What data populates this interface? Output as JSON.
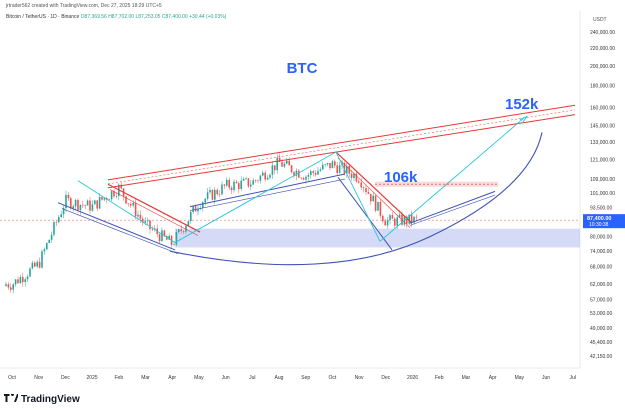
{
  "header": {
    "created_by": "jrtrader562 created with TradingView.com, Dec 27, 2025 18:29 UTC+5"
  },
  "symbol": {
    "name": "Bitcoin / TetherUS · 1D · Binance",
    "ohlc": "O87,369.56 H87,702.00 L87,253.05 C87,400.00 +30.44 (+0.03%)"
  },
  "footer": {
    "brand": "TradingView"
  },
  "colors": {
    "up": "#26a69a",
    "down": "#ef5350",
    "trend_red": "#e53935",
    "trend_blue": "#3f51b5",
    "cyan": "#26c6da",
    "zone": "#b3bdf0",
    "label_blue": "#2962ff",
    "price_tag": "#2962ff"
  },
  "chart_data": {
    "type": "candlestick",
    "title": "BTC",
    "currency": "USDT",
    "x_ticks": [
      "Oct",
      "Nov",
      "Dec",
      "2025",
      "Feb",
      "Mar",
      "Apr",
      "May",
      "Jun",
      "Jul",
      "Aug",
      "Sep",
      "Oct",
      "Nov",
      "Dec",
      "2026",
      "Feb",
      "Mar",
      "Apr",
      "May",
      "Jun",
      "Jul"
    ],
    "y_ticks": [
      "240,000.00",
      "220,000.00",
      "200,000.00",
      "180,000.00",
      "160,000.00",
      "145,000.00",
      "133,000.00",
      "121,000.00",
      "109,000.00",
      "101,000.00",
      "93,500.00",
      "86,000.00",
      "80,000.00",
      "74,000.00",
      "68,000.00",
      "62,000.00",
      "57,000.00",
      "53,000.00",
      "49,000.00",
      "45,400.00",
      "42,150.00"
    ],
    "y_scale": "log",
    "current_price": {
      "price": "87,400.00",
      "countdown": "10:30:38"
    },
    "annotations": [
      {
        "text": "106k",
        "price": 106000
      },
      {
        "text": "152k",
        "price": 152000
      }
    ],
    "support_zone": {
      "low": 75500,
      "high": 83500
    },
    "price_path": [
      [
        "Oct",
        62000
      ],
      [
        "Nov",
        69000
      ],
      [
        "Dec",
        97000
      ],
      [
        "2025",
        94000
      ],
      [
        "Feb",
        104000
      ],
      [
        "Mar",
        85000
      ],
      [
        "Apr",
        77000
      ],
      [
        "May",
        96000
      ],
      [
        "Jun",
        105000
      ],
      [
        "Jul",
        107000
      ],
      [
        "Aug",
        119000
      ],
      [
        "Sep",
        111000
      ],
      [
        "Oct",
        118000
      ],
      [
        "Nov",
        110000
      ],
      [
        "Dec",
        87000
      ],
      [
        "2026",
        87400
      ]
    ]
  }
}
